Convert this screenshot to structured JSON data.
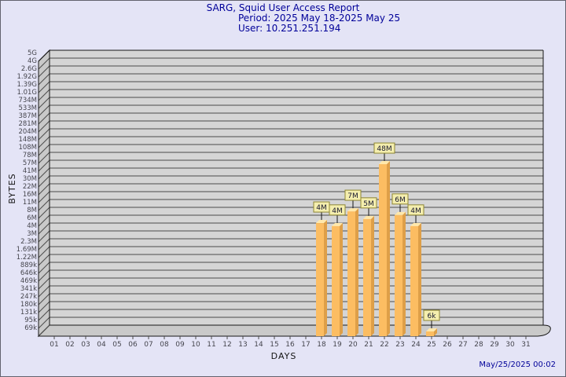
{
  "titles": {
    "line1": "SARG, Squid User Access Report",
    "line2": "Period: 2025 May 18-2025 May 25",
    "line3": "User: 10.251.251.194"
  },
  "footer": {
    "timestamp": "May/25/2025 00:02"
  },
  "chart_data": {
    "type": "bar",
    "title": "SARG, Squid User Access Report",
    "subtitle": "Period: 2025 May 18-2025 May 25",
    "user": "10.251.251.194",
    "xlabel": "DAYS",
    "ylabel": "BYTES",
    "y_scale": "log",
    "y_min_bytes": 69000,
    "y_max_bytes": 5000000000,
    "y_ticks_top_to_bottom": [
      "5G",
      "4G",
      "2.6G",
      "1.92G",
      "1.39G",
      "1.01G",
      "734M",
      "533M",
      "387M",
      "281M",
      "204M",
      "148M",
      "108M",
      "78M",
      "57M",
      "41M",
      "30M",
      "22M",
      "16M",
      "11M",
      "8M",
      "6M",
      "4M",
      "3M",
      "2.3M",
      "1.69M",
      "1.22M",
      "889k",
      "646k",
      "469k",
      "341k",
      "247k",
      "180k",
      "131k",
      "95k",
      "69k"
    ],
    "categories": [
      "01",
      "02",
      "03",
      "04",
      "05",
      "06",
      "07",
      "08",
      "09",
      "10",
      "11",
      "12",
      "13",
      "14",
      "15",
      "16",
      "17",
      "18",
      "19",
      "20",
      "21",
      "22",
      "23",
      "24",
      "25",
      "26",
      "27",
      "28",
      "29",
      "30",
      "31"
    ],
    "points": [
      {
        "day": "18",
        "label": "4M",
        "value": 4400000
      },
      {
        "day": "19",
        "label": "4M",
        "value": 3900000
      },
      {
        "day": "20",
        "label": "7M",
        "value": 7100000
      },
      {
        "day": "21",
        "label": "5M",
        "value": 5200000
      },
      {
        "day": "22",
        "label": "48M",
        "value": 48400000
      },
      {
        "day": "23",
        "label": "6M",
        "value": 6100000
      },
      {
        "day": "24",
        "label": "4M",
        "value": 3900000
      },
      {
        "day": "25",
        "label": "6k",
        "value": 6000
      }
    ],
    "legend": "none",
    "grid": "horizontal",
    "colors": {
      "page_bg": "#e4e4f6",
      "title_text": "#000099",
      "plot_bg": "#d5d5d5",
      "wall_bg": "#c9c9c9",
      "grid_line": "#4b4b4b",
      "edge_line": "#161616",
      "tick_text": "#46464e",
      "bar_face": "#fcbd62",
      "bar_side": "#de9f48",
      "bar_top": "#ffe8ab",
      "value_label_bg": "#f4eeae",
      "value_label_border": "#8f8733",
      "value_label_text": "#16162e"
    }
  }
}
